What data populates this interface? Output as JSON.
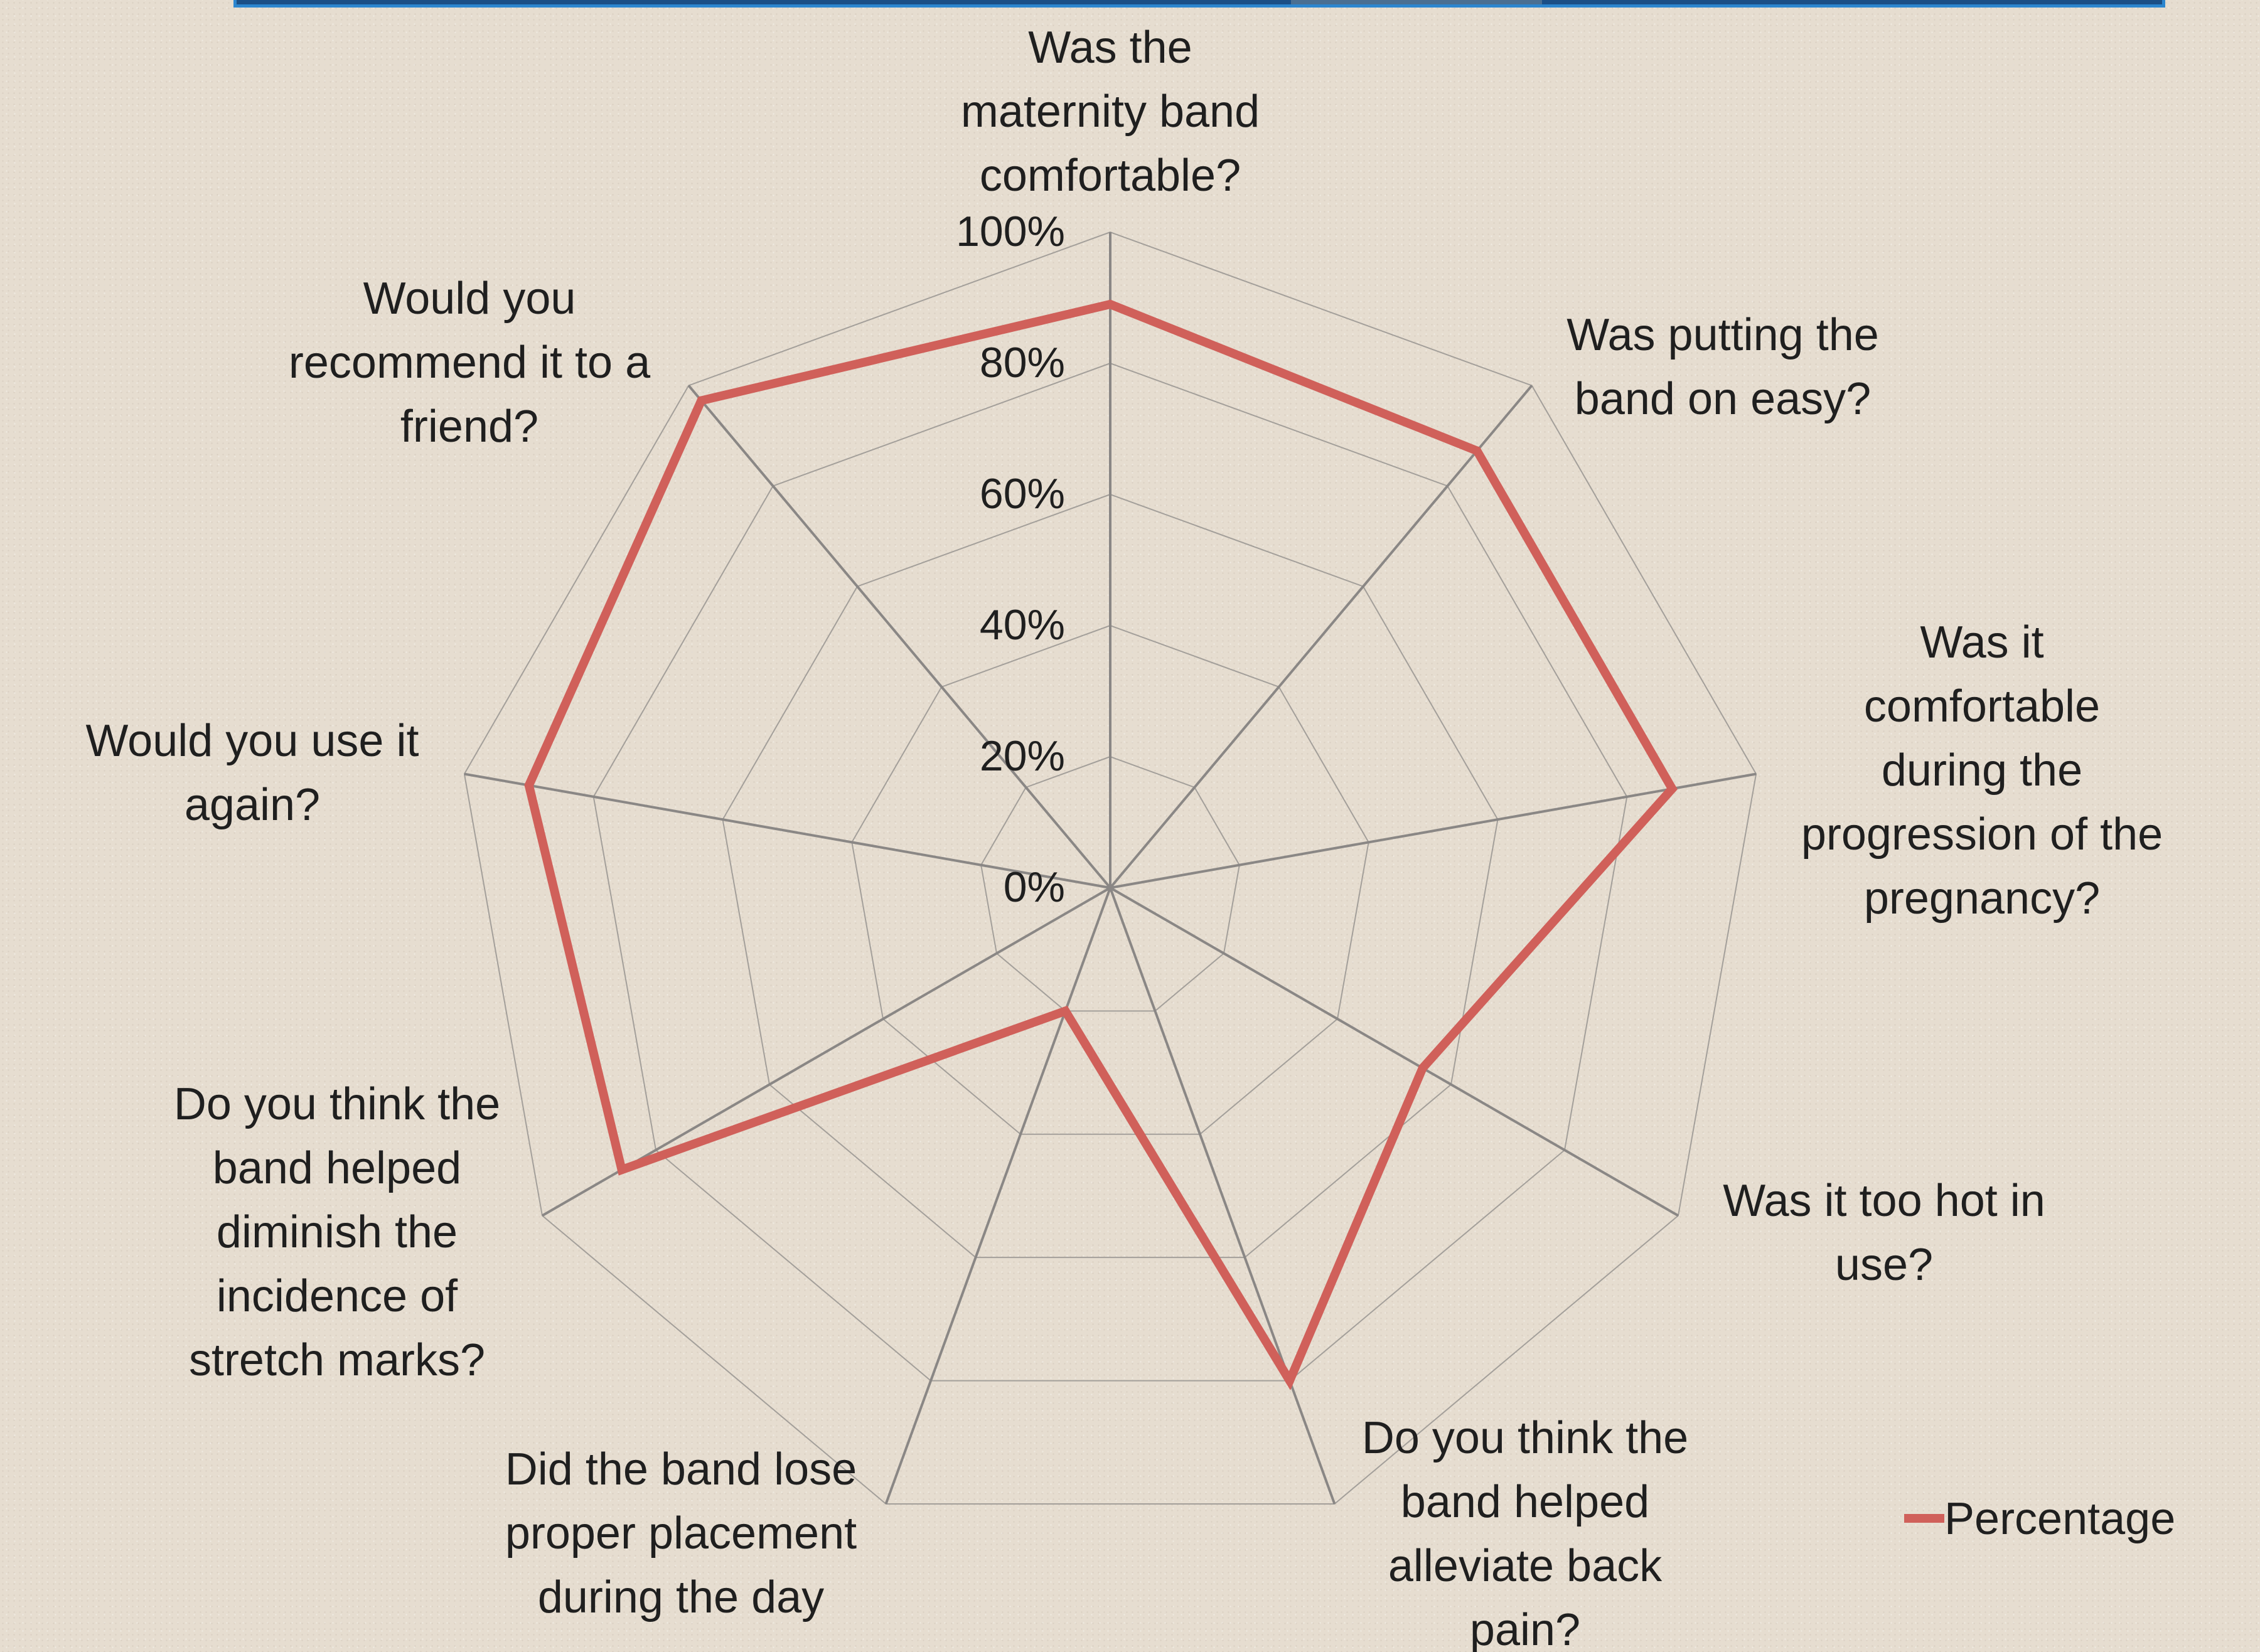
{
  "chart_data": {
    "type": "radar",
    "categories": [
      "Was the maternity band comfortable?",
      "Was putting the band on easy?",
      "Was it comfortable during the progression of the pregnancy?",
      "Was it too hot in use?",
      "Do you think the band helped alleviate back pain?",
      "Did the band lose proper placement during the day",
      "Do you think the band helped diminish the incidence of stretch marks?",
      "Would you use it again?",
      "Would you recommend it to a friend?"
    ],
    "category_lines": [
      [
        "Was the",
        "maternity band",
        "comfortable?"
      ],
      [
        "Was putting the",
        "band on easy?"
      ],
      [
        "Was it",
        "comfortable",
        "during the",
        "progression of the",
        "pregnancy?"
      ],
      [
        "Was it too hot in",
        "use?"
      ],
      [
        "Do you think the",
        "band helped",
        "alleviate back",
        "pain?"
      ],
      [
        "Did the band lose",
        "proper placement",
        "during the day"
      ],
      [
        "Do you think the",
        "band helped",
        "diminish the",
        "incidence of",
        "stretch marks?"
      ],
      [
        "Would you use it",
        "again?"
      ],
      [
        "Would you",
        "recommend it to a",
        "friend?"
      ]
    ],
    "series": [
      {
        "name": "Percentage",
        "values": [
          0.89,
          0.87,
          0.87,
          0.55,
          0.8,
          0.2,
          0.86,
          0.9,
          0.97
        ],
        "color": "#d0605a"
      }
    ],
    "axis_ticks": [
      "0%",
      "20%",
      "40%",
      "60%",
      "80%",
      "100%"
    ],
    "rlim": [
      0,
      1
    ],
    "grid": true,
    "legend": "right"
  }
}
